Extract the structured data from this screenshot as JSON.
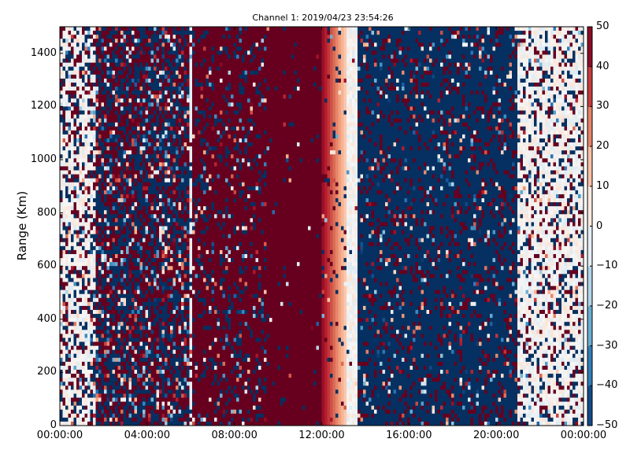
{
  "chart_data": {
    "type": "heatmap",
    "title": "Channel 1: 2019/04/23 23:54:26",
    "xlabel": "",
    "ylabel": "Range (Km)",
    "xlim_hours": [
      0,
      24
    ],
    "ylim": [
      0,
      1500
    ],
    "xticks": [
      {
        "v": 0,
        "label": "00:00:00"
      },
      {
        "v": 4,
        "label": "04:00:00"
      },
      {
        "v": 8,
        "label": "08:00:00"
      },
      {
        "v": 12,
        "label": "12:00:00"
      },
      {
        "v": 16,
        "label": "16:00:00"
      },
      {
        "v": 20,
        "label": "20:00:00"
      },
      {
        "v": 24,
        "label": "00:00:00"
      }
    ],
    "yticks": [
      0,
      200,
      400,
      600,
      800,
      1000,
      1200,
      1400
    ],
    "colorbar": {
      "range": [
        -50,
        50
      ],
      "ticks": [
        50,
        40,
        30,
        20,
        10,
        0,
        -10,
        -20,
        -30,
        -40,
        -50
      ],
      "colormap": "RdBu_r"
    },
    "bands": [
      {
        "from": 0,
        "to": 1.7,
        "base": 0,
        "noise": 0.45
      },
      {
        "from": 1.7,
        "to": 6,
        "base": 0,
        "noise": 1.0
      },
      {
        "from": 6,
        "to": 6.1,
        "base": -5,
        "noise": 0.3
      },
      {
        "from": 6.1,
        "to": 9.5,
        "base": 50,
        "noise": 0.4
      },
      {
        "from": 9.5,
        "to": 12,
        "base": 50,
        "noise": 0.05
      },
      {
        "from": 12,
        "to": 13.2,
        "base": "gradient 45 to 10",
        "noise": 0.1
      },
      {
        "from": 13.2,
        "to": 13.6,
        "base": 0,
        "noise": 0.02
      },
      {
        "from": 13.6,
        "to": 21,
        "base": -50,
        "noise": 0.4
      },
      {
        "from": 21,
        "to": 24,
        "base": 0,
        "noise": 0.3
      }
    ]
  }
}
